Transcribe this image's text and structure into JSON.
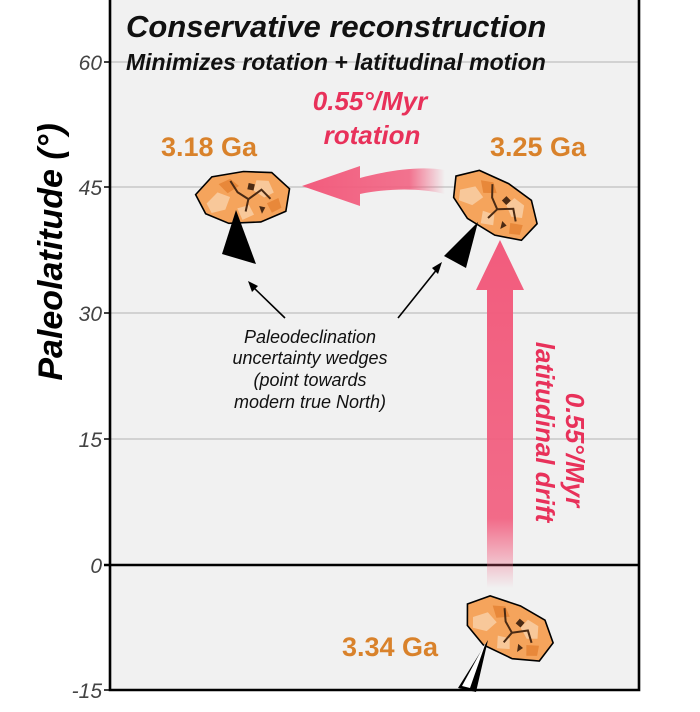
{
  "title": "Conservative reconstruction",
  "subtitle": "Minimizes rotation + latitudinal motion",
  "y_axis": {
    "label": "Paleolatitude (°)",
    "ticks": [
      "60",
      "45",
      "30",
      "15",
      "0",
      "-15"
    ]
  },
  "cratons": [
    {
      "age": "3.18 Ga"
    },
    {
      "age": "3.25 Ga"
    },
    {
      "age": "3.34 Ga"
    }
  ],
  "rotation_arrow": {
    "rate": "0.55°/Myr",
    "label": "rotation"
  },
  "drift_arrow": {
    "rate": "0.55°/Myr",
    "label": "latitudinal drift"
  },
  "annotation": {
    "lines": [
      "Paleodeclination",
      "uncertainty wedges",
      "(point towards",
      "modern true North)"
    ]
  },
  "colors": {
    "age_text": "#d9822b",
    "arrow": "#f25c7d",
    "arrow_text": "#e8315a",
    "craton_fill": "#f5a45c",
    "craton_light": "#f8c89a",
    "wedge": "#000000",
    "panel": "#f1f1f1"
  }
}
